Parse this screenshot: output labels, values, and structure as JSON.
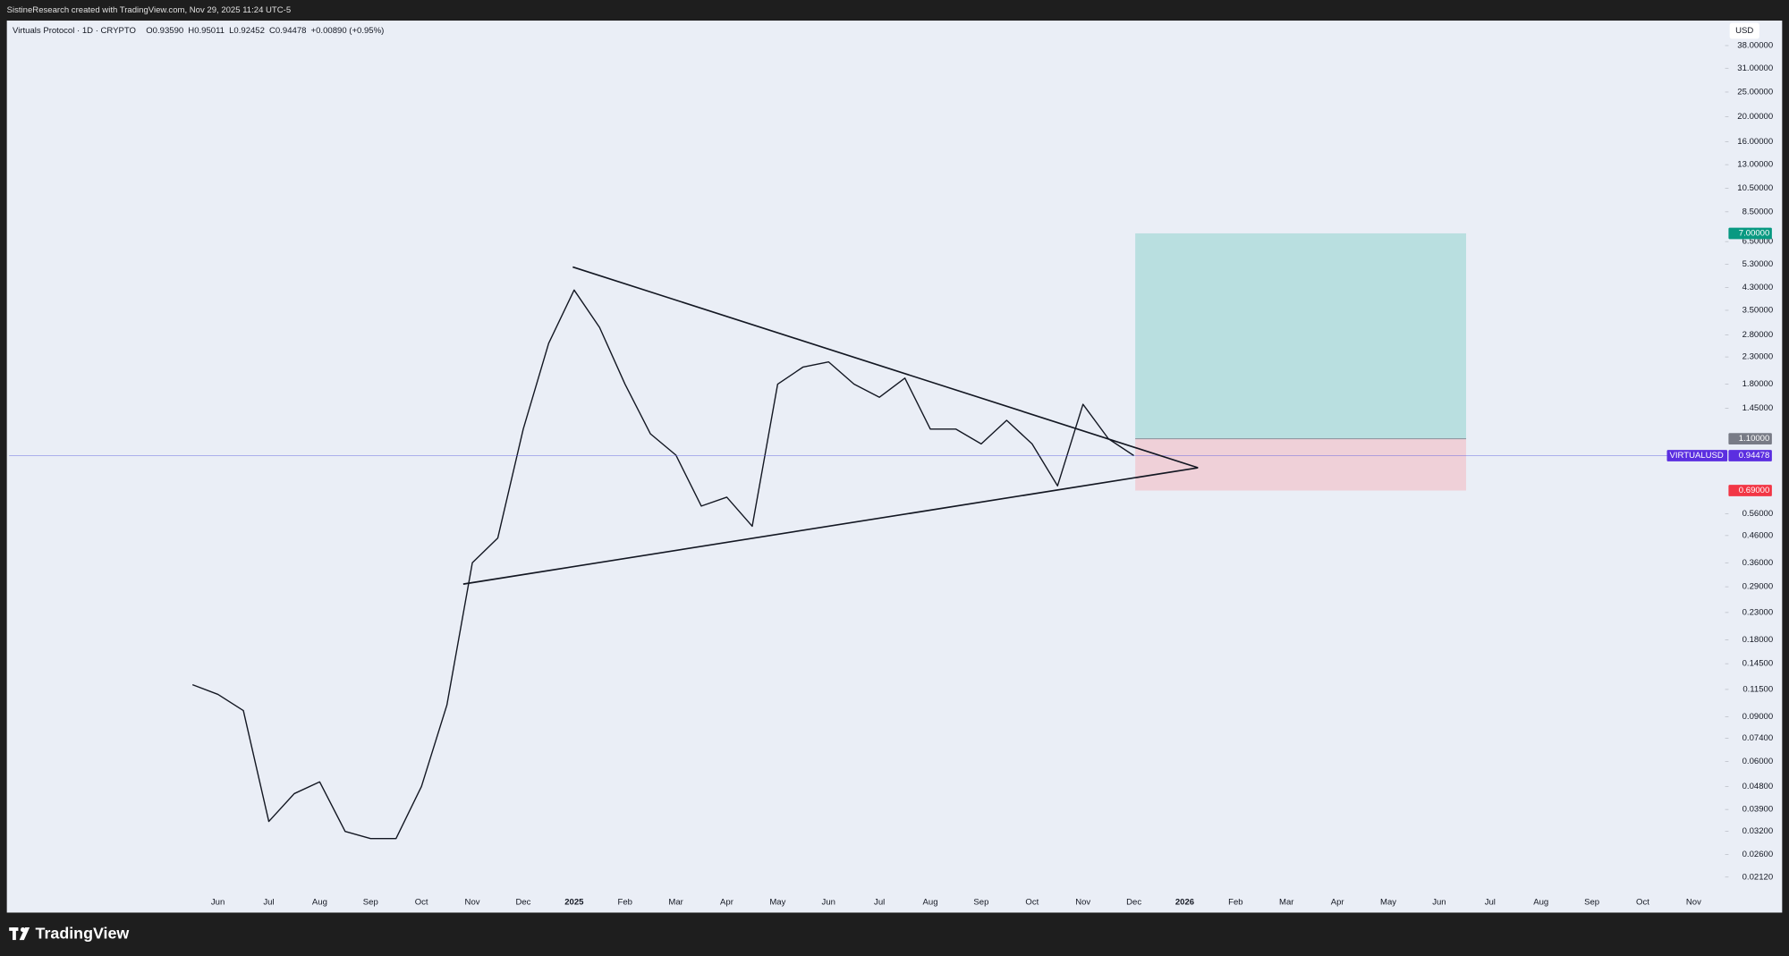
{
  "header": "SistineResearch created with TradingView.com, Nov 29, 2025 11:24 UTC-5",
  "footer": "TradingView",
  "chart_data": {
    "type": "line",
    "title": "Virtuals Protocol · 1D · CRYPTO",
    "ohlc": [
      "O0.93590",
      "H0.95011",
      "L0.92452",
      "C0.94478",
      "+0.00890 (+0.95%)"
    ],
    "currency": "USD",
    "log_scale": true,
    "background": "#eaeef6",
    "categories": [
      null,
      "Jun",
      null,
      "Jul",
      null,
      "Aug",
      null,
      "Sep",
      null,
      "Oct",
      null,
      "Nov",
      null,
      "Dec",
      null,
      "2025",
      null,
      "Feb",
      null,
      "Mar",
      null,
      "Apr",
      null,
      "May",
      null,
      "Jun",
      null,
      "Jul",
      null,
      "Aug",
      null,
      "Sep",
      null,
      "Oct",
      null,
      "Nov",
      null,
      "Dec",
      null,
      "2026",
      null,
      "Feb",
      null,
      "Mar",
      null,
      "Apr",
      null,
      "May",
      null,
      "Jun",
      null,
      "Jul",
      null,
      "Aug",
      null,
      "Sep",
      null,
      "Oct",
      null,
      "Nov",
      null
    ],
    "series": [
      {
        "name": "VIRTUALUSD",
        "color": "#131722",
        "values": [
          0.12,
          0.11,
          0.095,
          0.035,
          0.045,
          0.05,
          0.032,
          0.03,
          0.03,
          0.048,
          0.1,
          0.36,
          0.45,
          1.2,
          2.6,
          4.2,
          3.0,
          1.8,
          1.15,
          0.95,
          0.6,
          0.65,
          0.5,
          1.8,
          2.1,
          2.2,
          1.8,
          1.6,
          1.9,
          1.2,
          1.2,
          1.05,
          1.3,
          1.05,
          0.72,
          1.5,
          1.1,
          0.94478,
          null,
          null,
          null,
          null,
          null,
          null,
          null,
          null,
          null,
          null,
          null,
          null,
          null,
          null,
          null,
          null,
          null,
          null,
          null,
          null,
          null,
          null,
          null
        ]
      }
    ],
    "last_price": {
      "value": 0.94478,
      "label": "0.94478"
    },
    "position": {
      "target": 7,
      "entry": 1.1,
      "stop": 0.69,
      "value_labels": [
        "7.00000",
        "1.10000",
        "0.69000"
      ],
      "colors": [
        "#089981",
        "#787b86",
        "#f23645"
      ]
    },
    "ylim": [
      0.0154,
      47.6
    ],
    "yticks": [
      {
        "value": 38,
        "label": "38.00000"
      },
      {
        "value": 31,
        "label": "31.00000"
      },
      {
        "value": 25,
        "label": "25.00000"
      },
      {
        "value": 20,
        "label": "20.00000"
      },
      {
        "value": 16,
        "label": "16.00000"
      },
      {
        "value": 13,
        "label": "13.00000"
      },
      {
        "value": 10.5,
        "label": "10.50000"
      },
      {
        "value": 8.5,
        "label": "8.50000"
      },
      {
        "value": 6.5,
        "label": "6.50000"
      },
      {
        "value": 5.3,
        "label": "5.30000"
      },
      {
        "value": 4.3,
        "label": "4.30000"
      },
      {
        "value": 3.5,
        "label": "3.50000"
      },
      {
        "value": 2.8,
        "label": "2.80000"
      },
      {
        "value": 2.3,
        "label": "2.30000"
      },
      {
        "value": 1.8,
        "label": "1.80000"
      },
      {
        "value": 1.45,
        "label": "1.45000"
      },
      {
        "value": 0.56,
        "label": "0.56000"
      },
      {
        "value": 0.46,
        "label": "0.46000"
      },
      {
        "value": 0.36,
        "label": "0.36000"
      },
      {
        "value": 0.29,
        "label": "0.29000"
      },
      {
        "value": 0.23,
        "label": "0.23000"
      },
      {
        "value": 0.18,
        "label": "0.18000"
      },
      {
        "value": 0.145,
        "label": "0.14500"
      },
      {
        "value": 0.115,
        "label": "0.11500"
      },
      {
        "value": 0.09,
        "label": "0.09000"
      },
      {
        "value": 0.074,
        "label": "0.07400"
      },
      {
        "value": 0.06,
        "label": "0.06000"
      },
      {
        "value": 0.048,
        "label": "0.04800"
      },
      {
        "value": 0.039,
        "label": "0.03900"
      },
      {
        "value": 0.032,
        "label": "0.03200"
      },
      {
        "value": 0.026,
        "label": "0.02600"
      },
      {
        "value": 0.0212,
        "label": "0.02120"
      }
    ]
  }
}
